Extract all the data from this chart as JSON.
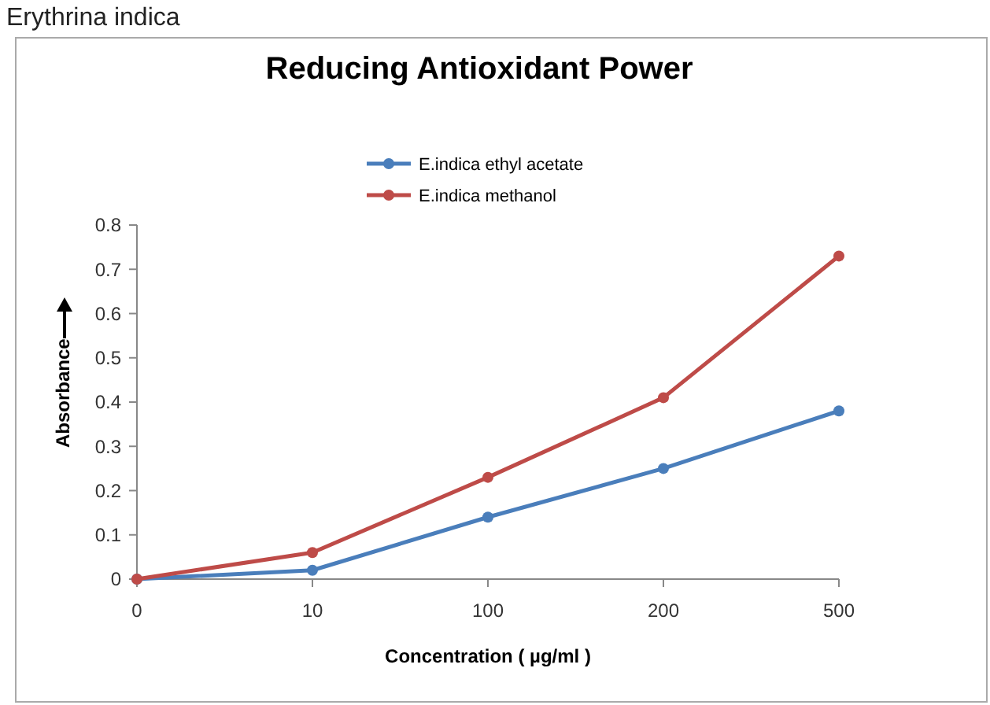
{
  "chart_data": {
    "type": "line",
    "title": "Reducing Antioxidant Power",
    "xlabel": "Concentration ( µg/ml )",
    "ylabel": "Absorbance",
    "annotations": [
      "Erythrina indica"
    ],
    "categories": [
      "0",
      "10",
      "100",
      "200",
      "500"
    ],
    "series": [
      {
        "name": "E.indica ethyl acetate",
        "color": "#4a7ebb",
        "values": [
          0,
          0.02,
          0.14,
          0.25,
          0.38
        ]
      },
      {
        "name": "E.indica methanol",
        "color": "#be4b48",
        "values": [
          0,
          0.06,
          0.23,
          0.41,
          0.73
        ]
      }
    ],
    "ylim": [
      0,
      0.8
    ],
    "yticks": [
      0,
      0.1,
      0.2,
      0.3,
      0.4,
      0.5,
      0.6,
      0.7,
      0.8
    ],
    "grid": false,
    "legend": "top",
    "marker": "circle",
    "line_style": "solid"
  }
}
